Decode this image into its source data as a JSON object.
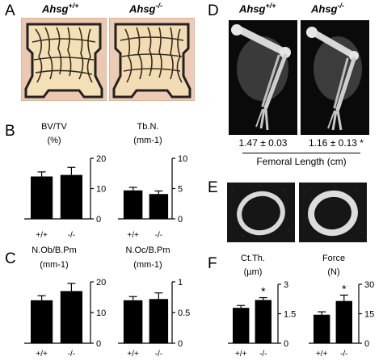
{
  "panels": {
    "A": {
      "letter": "A",
      "genotypes": [
        {
          "base": "Ahsg",
          "sup": "+/+"
        },
        {
          "base": "Ahsg",
          "sup": "-/-"
        }
      ]
    },
    "B": {
      "letter": "B"
    },
    "C": {
      "letter": "C"
    },
    "D": {
      "letter": "D",
      "genotypes": [
        {
          "base": "Ahsg",
          "sup": "+/+"
        },
        {
          "base": "Ahsg",
          "sup": "-/-"
        }
      ],
      "values": [
        "1.47 ± 0.03",
        "1.16 ± 0.13 *"
      ],
      "caption": "Femoral Length (cm)"
    },
    "E": {
      "letter": "E"
    },
    "F": {
      "letter": "F"
    }
  },
  "chart_data": [
    {
      "id": "bvtv",
      "type": "bar",
      "title": "BV/TV",
      "unit": "(%)",
      "categories": [
        "+/+",
        "-/-"
      ],
      "values": [
        14,
        14.5
      ],
      "errors": [
        1.5,
        2.5
      ],
      "ylim": [
        0,
        20
      ],
      "ticks": [
        "0",
        "10",
        "20"
      ],
      "sig": [
        "",
        ""
      ]
    },
    {
      "id": "tbn",
      "type": "bar",
      "title": "Tb.N.",
      "unit": "(mm-1)",
      "categories": [
        "+/+",
        "-/-"
      ],
      "values": [
        4.7,
        4.1
      ],
      "errors": [
        0.5,
        0.5
      ],
      "ylim": [
        0,
        10
      ],
      "ticks": [
        "0",
        "5",
        "10"
      ],
      "sig": [
        "",
        ""
      ]
    },
    {
      "id": "nob",
      "type": "bar",
      "title": "N.Ob/B.Pm",
      "unit": "(mm-1)",
      "categories": [
        "+/+",
        "-/-"
      ],
      "values": [
        14,
        17
      ],
      "errors": [
        1.5,
        2.5
      ],
      "ylim": [
        0,
        20
      ],
      "ticks": [
        "0",
        "10",
        "20"
      ],
      "sig": [
        "",
        ""
      ]
    },
    {
      "id": "noc",
      "type": "bar",
      "title": "N.Oc/B.Pm",
      "unit": "(mm-1)",
      "categories": [
        "+/+",
        "-/-"
      ],
      "values": [
        0.7,
        0.72
      ],
      "errors": [
        0.06,
        0.1
      ],
      "ylim": [
        0,
        1
      ],
      "ticks": [
        "0",
        "0.5",
        "1"
      ],
      "sig": [
        "",
        ""
      ]
    },
    {
      "id": "ctth",
      "type": "bar",
      "title": "Ct.Th.",
      "unit": "(µm)",
      "categories": [
        "+/+",
        "-/-"
      ],
      "values": [
        1.8,
        2.2
      ],
      "errors": [
        0.12,
        0.12
      ],
      "ylim": [
        0,
        3
      ],
      "ticks": [
        "0",
        "1.5",
        "3"
      ],
      "sig": [
        "",
        "*"
      ]
    },
    {
      "id": "force",
      "type": "bar",
      "title": "Force",
      "unit": "(N)",
      "categories": [
        "+/+",
        "-/-"
      ],
      "values": [
        14.5,
        21.5
      ],
      "errors": [
        1.5,
        3
      ],
      "ylim": [
        0,
        30
      ],
      "ticks": [
        "0",
        "15",
        "30"
      ],
      "sig": [
        "",
        "*"
      ]
    }
  ]
}
